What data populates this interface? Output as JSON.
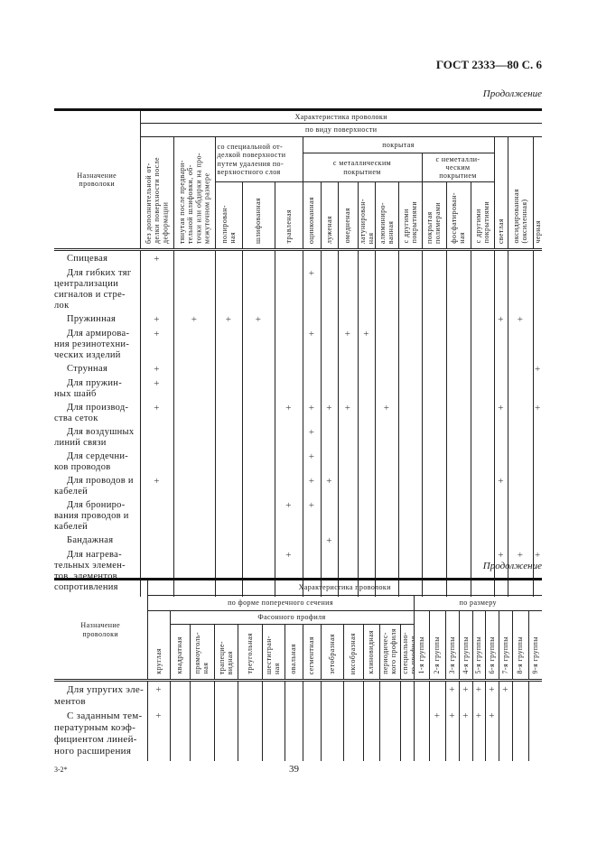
{
  "header": {
    "title": "ГОСТ 2333—80 С. 6",
    "continuation_1": "Продолжение",
    "continuation_2": "Продолжение"
  },
  "table1": {
    "label_header": "Назначение\nпроволоки",
    "characteristic": "Характеристика проволоки",
    "by_surface": "по виду поверхности",
    "col_no_finish": "без дополнительной от-\nделки поверхности после\nдеформации",
    "col_drawn": "тянутая после предвари-\nтельной шлифовки, об-\nточки или обдирки на про-\nмежуточном размере",
    "special_group": "со специальной от-\nделкой поверхности\nпутем удаления по-\nверхностного слоя",
    "coated_group": "покрытая",
    "metal_group": "с металлическим\nпокрытием",
    "nonmetal_group": "с неметалли-\nческим\nпокрытием",
    "special_cols": [
      "полирован-\nная",
      "шлифованная",
      "травленая"
    ],
    "metal_cols": [
      "оцинкованная",
      "луженая",
      "омедненая",
      "латунирован-\nная",
      "алюминиро-\nванная",
      "с другими\nпокрытиями"
    ],
    "nonmetal_cols": [
      "покрытая\nполимерами",
      "фосфатирован-\nная",
      "с другими\nпокрытиями"
    ],
    "col_bright": "светлая",
    "col_oxidized": "оксидированная\n(оксиленная)",
    "col_black": "черная",
    "mark": "+",
    "rows": [
      {
        "label": "Спицевая",
        "marks": [
          1
        ]
      },
      {
        "label": "Для гибких тяг\nцентрализации\nсигналов и стре-\nлок",
        "marks": [
          6
        ]
      },
      {
        "label": "Пружинная",
        "marks": [
          1,
          2,
          3,
          4,
          15,
          16
        ]
      },
      {
        "label": "Для армирова-\nния резинотехни-\nческих изделий",
        "marks": [
          1,
          6,
          8,
          9
        ]
      },
      {
        "label": "Струнная",
        "marks": [
          1,
          17
        ]
      },
      {
        "label": "Для пружин-\nных шайб",
        "marks": [
          1
        ]
      },
      {
        "label": "Для производ-\nства сеток",
        "marks": [
          1,
          5,
          6,
          7,
          8,
          10,
          15,
          17
        ]
      },
      {
        "label": "Для воздушных\nлиний связи",
        "marks": [
          6
        ]
      },
      {
        "label": "Для сердечни-\nков проводов",
        "marks": [
          6
        ]
      },
      {
        "label": "Для проводов и\nкабелей",
        "marks": [
          1,
          6,
          7,
          15
        ]
      },
      {
        "label": "Для брониро-\nвания проводов и\nкабелей",
        "marks": [
          5,
          6
        ]
      },
      {
        "label": "Бандажная",
        "marks": [
          7
        ]
      },
      {
        "label": "Для нагрева-\nтельных элемен-\nтов, элементов\nсопротивления",
        "marks": [
          5,
          15,
          16,
          17
        ]
      }
    ]
  },
  "table2": {
    "label_header": "Назначение\nпроволоки",
    "characteristic": "Характеристика проволоки",
    "by_shape": "по форме поперечного сечения",
    "by_size": "по размеру",
    "col_round": "круглая",
    "shaped_group": "Фасонного профиля",
    "shaped_cols": [
      "квадратная",
      "прямоуголь-\nная",
      "трапецие-\nвидная",
      "треугольная",
      "шестигран-\nная",
      "овальная",
      "сегментная",
      "зетобразная",
      "иксобразная",
      "клиновидная",
      "периодичес-\nкого профиля",
      "специально-\nго профиля"
    ],
    "size_cols": [
      "1-я группы",
      "2-я группы",
      "3-я группы",
      "4-я группы",
      "5-я группы",
      "6-я группы",
      "7-я группы",
      "8-я группы",
      "9-я группы"
    ],
    "mark": "+",
    "rows": [
      {
        "label": "Для упругих эле-\nментов",
        "marks": [
          1,
          16,
          17,
          18,
          19,
          20
        ]
      },
      {
        "label": "С заданным тем-\nпературным коэф-\nфициентом линей-\nного расширения",
        "marks": [
          1,
          15,
          16,
          17,
          18,
          19
        ]
      }
    ]
  },
  "footer": {
    "left": "3-2*",
    "page": "39"
  }
}
